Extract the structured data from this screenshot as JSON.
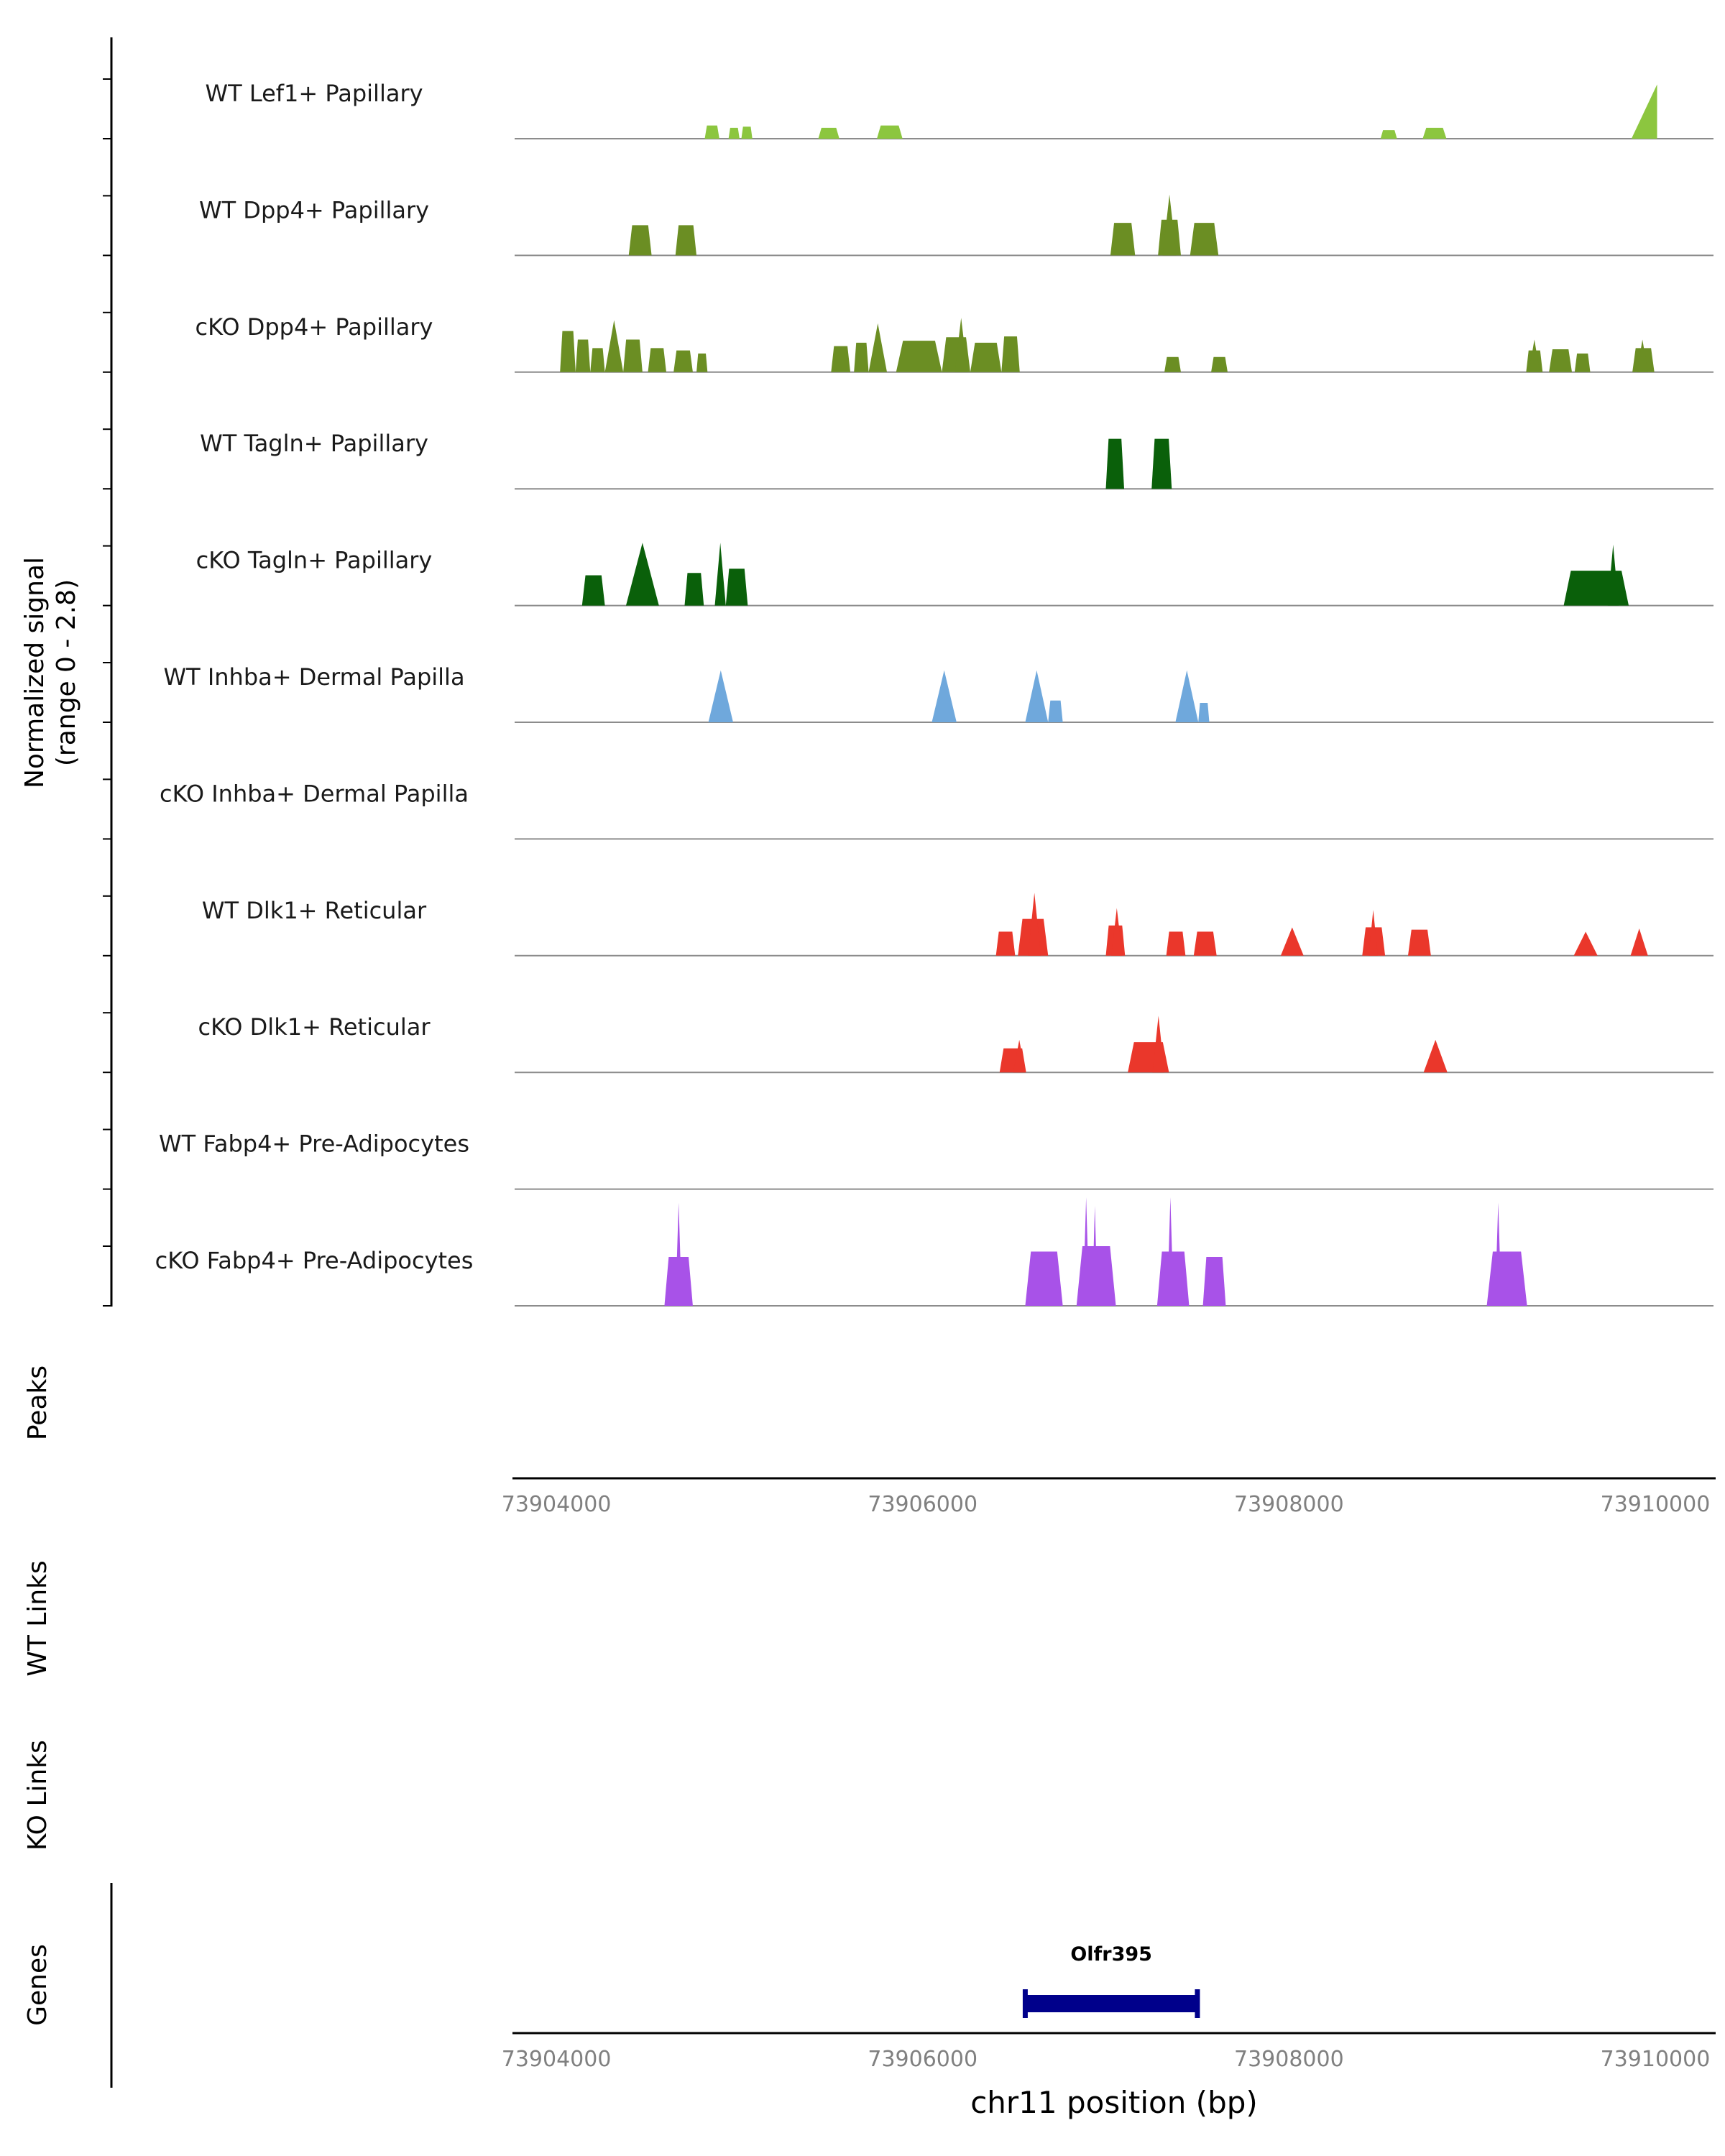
{
  "figure": {
    "ylabel_line1": "Normalized signal",
    "ylabel_line2": "(range 0 - 2.8)",
    "section_peaks": "Peaks",
    "section_wt_links": "WT Links",
    "section_ko_links": "KO Links",
    "section_genes": "Genes",
    "xlabel": "chr11 position (bp)"
  },
  "chart_data": {
    "type": "area",
    "title": "",
    "chrom": "chr11",
    "x_range": [
      73903772,
      73910318
    ],
    "y_range": [
      0,
      2.8
    ],
    "x_ticks": [
      73904000,
      73906000,
      73908000,
      73910000
    ],
    "x_tick_labels": [
      "73904000",
      "73906000",
      "73908000",
      "73910000"
    ],
    "grid": false,
    "baseline_color": "#8C8C8C",
    "tick_label_color": "#808080",
    "tracks": [
      {
        "label": "WT Lef1+ Papillary",
        "color": "#8CC63F",
        "peaks": [
          {
            "s": 73904810,
            "e": 73904890,
            "v": 0.34
          },
          {
            "s": 73904940,
            "e": 73905000,
            "v": 0.28
          },
          {
            "s": 73905010,
            "e": 73905070,
            "v": 0.31
          },
          {
            "s": 73905430,
            "e": 73905545,
            "v": 0.28
          },
          {
            "s": 73905750,
            "e": 73905890,
            "v": 0.34
          },
          {
            "s": 73908500,
            "e": 73908590,
            "v": 0.22
          },
          {
            "s": 73908730,
            "e": 73908860,
            "v": 0.28
          },
          {
            "s": 73909870,
            "e": 73910010,
            "v": 1.4,
            "t": "rampR"
          }
        ]
      },
      {
        "label": "WT Dpp4+ Papillary",
        "color": "#6B8E23",
        "peaks": [
          {
            "s": 73904395,
            "e": 73904520,
            "v": 0.78
          },
          {
            "s": 73904650,
            "e": 73904765,
            "v": 0.78
          },
          {
            "s": 73907025,
            "e": 73907160,
            "v": 0.84
          },
          {
            "s": 73907285,
            "e": 73907410,
            "v": 0.92
          },
          {
            "s": 73907310,
            "e": 73907385,
            "v": 1.57,
            "t": "tri"
          },
          {
            "s": 73907460,
            "e": 73907615,
            "v": 0.84
          }
        ]
      },
      {
        "label": "cKO Dpp4+ Papillary",
        "color": "#6B8E23",
        "peaks": [
          {
            "s": 73904020,
            "e": 73904105,
            "v": 1.06
          },
          {
            "s": 73904105,
            "e": 73904185,
            "v": 0.84
          },
          {
            "s": 73904185,
            "e": 73904265,
            "v": 0.62
          },
          {
            "s": 73904265,
            "e": 73904365,
            "v": 1.34,
            "t": "tri"
          },
          {
            "s": 73904365,
            "e": 73904470,
            "v": 0.84
          },
          {
            "s": 73904500,
            "e": 73904600,
            "v": 0.62
          },
          {
            "s": 73904640,
            "e": 73904745,
            "v": 0.56
          },
          {
            "s": 73904765,
            "e": 73904825,
            "v": 0.48
          },
          {
            "s": 73905500,
            "e": 73905605,
            "v": 0.67
          },
          {
            "s": 73905625,
            "e": 73905705,
            "v": 0.76
          },
          {
            "s": 73905705,
            "e": 73905805,
            "v": 1.26,
            "t": "tri"
          },
          {
            "s": 73905855,
            "e": 73906105,
            "v": 0.81
          },
          {
            "s": 73906105,
            "e": 73906260,
            "v": 0.9
          },
          {
            "s": 73906175,
            "e": 73906245,
            "v": 1.4,
            "t": "tri"
          },
          {
            "s": 73906260,
            "e": 73906430,
            "v": 0.76
          },
          {
            "s": 73906430,
            "e": 73906530,
            "v": 0.92
          },
          {
            "s": 73907320,
            "e": 73907410,
            "v": 0.39
          },
          {
            "s": 73907575,
            "e": 73907665,
            "v": 0.39
          },
          {
            "s": 73909295,
            "e": 73909385,
            "v": 0.56
          },
          {
            "s": 73909310,
            "e": 73909370,
            "v": 0.84,
            "t": "tri"
          },
          {
            "s": 73909420,
            "e": 73909545,
            "v": 0.59
          },
          {
            "s": 73909560,
            "e": 73909645,
            "v": 0.48
          },
          {
            "s": 73909875,
            "e": 73909995,
            "v": 0.62
          },
          {
            "s": 73909900,
            "e": 73909960,
            "v": 0.84,
            "t": "tri"
          }
        ]
      },
      {
        "label": "WT Tagln+ Papillary",
        "color": "#0A600A",
        "peaks": [
          {
            "s": 73907000,
            "e": 73907100,
            "v": 1.29
          },
          {
            "s": 73907250,
            "e": 73907360,
            "v": 1.29
          }
        ]
      },
      {
        "label": "cKO Tagln+ Papillary",
        "color": "#0A600A",
        "peaks": [
          {
            "s": 73904140,
            "e": 73904265,
            "v": 0.78
          },
          {
            "s": 73904380,
            "e": 73904560,
            "v": 1.62,
            "t": "tri"
          },
          {
            "s": 73904700,
            "e": 73904805,
            "v": 0.84
          },
          {
            "s": 73904865,
            "e": 73904925,
            "v": 1.62,
            "t": "tri"
          },
          {
            "s": 73904925,
            "e": 73905045,
            "v": 0.95
          },
          {
            "s": 73909500,
            "e": 73909855,
            "v": 0.9
          },
          {
            "s": 73909740,
            "e": 73909800,
            "v": 1.57,
            "t": "tri"
          }
        ]
      },
      {
        "label": "WT Inhba+ Dermal Papilla",
        "color": "#6FA8DC",
        "peaks": [
          {
            "s": 73904830,
            "e": 73904965,
            "v": 1.34,
            "t": "tri"
          },
          {
            "s": 73906050,
            "e": 73906185,
            "v": 1.34,
            "t": "tri"
          },
          {
            "s": 73906560,
            "e": 73906685,
            "v": 1.34,
            "t": "tri"
          },
          {
            "s": 73906685,
            "e": 73906765,
            "v": 0.56
          },
          {
            "s": 73907380,
            "e": 73907505,
            "v": 1.34,
            "t": "tri"
          },
          {
            "s": 73907505,
            "e": 73907565,
            "v": 0.5
          }
        ]
      },
      {
        "label": "cKO Inhba+ Dermal Papilla",
        "color": "#6FA8DC",
        "peaks": []
      },
      {
        "label": "WT Dlk1+ Reticular",
        "color": "#EA372B",
        "peaks": [
          {
            "s": 73906400,
            "e": 73906505,
            "v": 0.62
          },
          {
            "s": 73906520,
            "e": 73906685,
            "v": 0.95
          },
          {
            "s": 73906575,
            "e": 73906645,
            "v": 1.62,
            "t": "tri"
          },
          {
            "s": 73907000,
            "e": 73907105,
            "v": 0.78
          },
          {
            "s": 73907030,
            "e": 73907090,
            "v": 1.23,
            "t": "tri"
          },
          {
            "s": 73907330,
            "e": 73907435,
            "v": 0.62
          },
          {
            "s": 73907480,
            "e": 73907605,
            "v": 0.62
          },
          {
            "s": 73907955,
            "e": 73908080,
            "v": 0.73,
            "t": "tri"
          },
          {
            "s": 73908400,
            "e": 73908525,
            "v": 0.73
          },
          {
            "s": 73908435,
            "e": 73908485,
            "v": 1.18,
            "t": "tri"
          },
          {
            "s": 73908650,
            "e": 73908775,
            "v": 0.67
          },
          {
            "s": 73909555,
            "e": 73909685,
            "v": 0.62,
            "t": "tri"
          },
          {
            "s": 73909865,
            "e": 73909960,
            "v": 0.7,
            "t": "tri"
          }
        ]
      },
      {
        "label": "cKO Dlk1+ Reticular",
        "color": "#EA372B",
        "peaks": [
          {
            "s": 73906420,
            "e": 73906565,
            "v": 0.62
          },
          {
            "s": 73906495,
            "e": 73906560,
            "v": 0.84,
            "t": "tri"
          },
          {
            "s": 73907120,
            "e": 73907345,
            "v": 0.78
          },
          {
            "s": 73907255,
            "e": 73907320,
            "v": 1.46,
            "t": "tri"
          },
          {
            "s": 73908735,
            "e": 73908865,
            "v": 0.84,
            "t": "tri"
          }
        ]
      },
      {
        "label": "WT Fabp4+ Pre-Adipocytes",
        "color": "#A852E8",
        "peaks": []
      },
      {
        "label": "cKO Fabp4+ Pre-Adipocytes",
        "color": "#A852E8",
        "peaks": [
          {
            "s": 73904590,
            "e": 73904745,
            "v": 1.26
          },
          {
            "s": 73904650,
            "e": 73904685,
            "v": 2.66,
            "t": "tri"
          },
          {
            "s": 73906560,
            "e": 73906765,
            "v": 1.4
          },
          {
            "s": 73906840,
            "e": 73907055,
            "v": 1.54
          },
          {
            "s": 73906875,
            "e": 73906910,
            "v": 2.8,
            "t": "tri"
          },
          {
            "s": 73906925,
            "e": 73906955,
            "v": 2.58,
            "t": "tri"
          },
          {
            "s": 73907280,
            "e": 73907455,
            "v": 1.4
          },
          {
            "s": 73907335,
            "e": 73907370,
            "v": 2.8,
            "t": "tri"
          },
          {
            "s": 73907530,
            "e": 73907655,
            "v": 1.26
          },
          {
            "s": 73909080,
            "e": 73909300,
            "v": 1.4
          },
          {
            "s": 73909125,
            "e": 73909160,
            "v": 2.66,
            "t": "tri"
          }
        ]
      }
    ],
    "peaks_items": [],
    "wt_links": [],
    "ko_links": [],
    "genes": [
      {
        "name": "Olfr395",
        "start": 73906560,
        "end": 73907500,
        "color": "#00008B"
      }
    ]
  }
}
